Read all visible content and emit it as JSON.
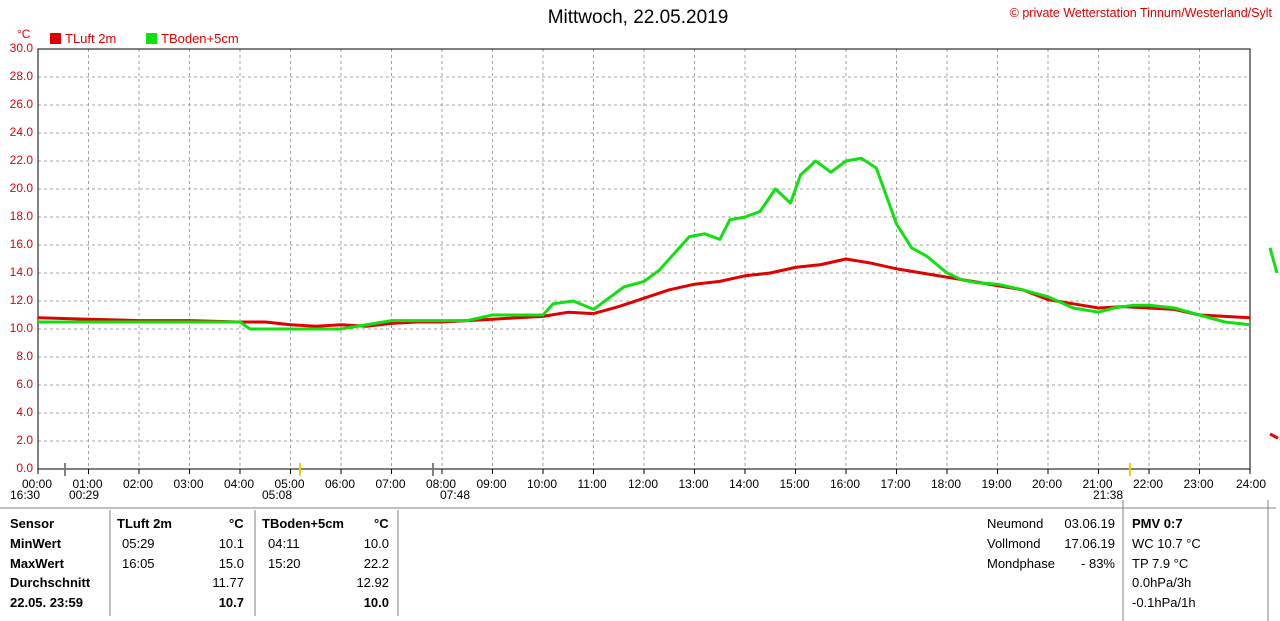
{
  "title": "Mittwoch, 22.05.2019",
  "copyright": "© private Wetterstation Tinnum/Westerland/Sylt",
  "legend": [
    {
      "label": "TLuft 2m",
      "color": "#e00000"
    },
    {
      "label": "TBoden+5cm",
      "color": "#10e010"
    }
  ],
  "unit": "°C",
  "chart_data": {
    "type": "line",
    "ylim": [
      0,
      30
    ],
    "xlim": [
      0,
      24
    ],
    "grid": true,
    "yticks": [
      "0.0",
      "2.0",
      "4.0",
      "6.0",
      "8.0",
      "10.0",
      "12.0",
      "14.0",
      "16.0",
      "18.0",
      "20.0",
      "22.0",
      "24.0",
      "26.0",
      "28.0",
      "30.0"
    ],
    "xticks": [
      "00:00",
      "01:00",
      "02:00",
      "03:00",
      "04:00",
      "05:00",
      "06:00",
      "07:00",
      "08:00",
      "09:00",
      "10:00",
      "11:00",
      "12:00",
      "13:00",
      "14:00",
      "15:00",
      "16:00",
      "17:00",
      "18:00",
      "19:00",
      "20:00",
      "21:00",
      "22:00",
      "23:00",
      "24:00"
    ],
    "series": [
      {
        "name": "TLuft 2m",
        "color": "#e00000",
        "x": [
          0,
          1,
          2,
          3,
          4,
          4.5,
          5,
          5.5,
          6,
          6.5,
          7,
          7.5,
          8,
          8.5,
          9,
          9.5,
          10,
          10.5,
          11,
          11.5,
          12,
          12.5,
          13,
          13.5,
          14,
          14.5,
          15,
          15.5,
          16,
          16.5,
          17,
          17.5,
          18,
          18.5,
          19,
          19.5,
          20,
          20.5,
          21,
          21.5,
          22,
          22.5,
          23,
          23.5,
          24
        ],
        "y": [
          10.8,
          10.7,
          10.6,
          10.6,
          10.5,
          10.5,
          10.3,
          10.2,
          10.3,
          10.2,
          10.4,
          10.5,
          10.5,
          10.6,
          10.7,
          10.8,
          10.9,
          11.2,
          11.1,
          11.6,
          12.2,
          12.8,
          13.2,
          13.4,
          13.8,
          14.0,
          14.4,
          14.6,
          15.0,
          14.7,
          14.3,
          14.0,
          13.7,
          13.4,
          13.1,
          12.8,
          12.1,
          11.8,
          11.5,
          11.6,
          11.5,
          11.4,
          11.0,
          10.9,
          10.8
        ]
      },
      {
        "name": "TBoden+5cm",
        "color": "#10e010",
        "x": [
          0,
          1,
          2,
          3,
          4,
          4.2,
          5,
          6,
          7,
          7.5,
          8,
          8.5,
          9,
          9.5,
          10,
          10.2,
          10.6,
          11,
          11.3,
          11.6,
          12,
          12.3,
          12.6,
          12.9,
          13.2,
          13.5,
          13.7,
          14,
          14.3,
          14.6,
          14.9,
          15.1,
          15.4,
          15.7,
          16,
          16.3,
          16.6,
          16.8,
          17,
          17.3,
          17.6,
          18,
          18.3,
          18.6,
          19,
          19.5,
          20,
          20.5,
          21,
          21.3,
          21.7,
          22,
          22.5,
          23,
          23.5,
          24
        ],
        "y": [
          10.5,
          10.5,
          10.5,
          10.5,
          10.5,
          10.0,
          10.0,
          10.0,
          10.6,
          10.6,
          10.6,
          10.6,
          11.0,
          11.0,
          11.0,
          11.8,
          12.0,
          11.4,
          12.2,
          13.0,
          13.4,
          14.2,
          15.4,
          16.6,
          16.8,
          16.4,
          17.8,
          18.0,
          18.4,
          20.0,
          19.0,
          21.0,
          22.0,
          21.2,
          22.0,
          22.2,
          21.5,
          19.5,
          17.5,
          15.8,
          15.2,
          14.0,
          13.5,
          13.3,
          13.2,
          12.8,
          12.3,
          11.5,
          11.2,
          11.5,
          11.7,
          11.7,
          11.5,
          11.0,
          10.5,
          10.3
        ]
      }
    ]
  },
  "markers": {
    "left_time": "16:30",
    "moonrise": "00:29",
    "sunrise": "05:08",
    "moonset": "07:48",
    "sunset": "21:38"
  },
  "table": {
    "headers": {
      "sensor": "Sensor",
      "col1": "TLuft 2m",
      "col1_unit": "°C",
      "col2": "TBoden+5cm",
      "col2_unit": "°C"
    },
    "rows": [
      {
        "label": "MinWert",
        "t1": "05:29",
        "v1": "10.1",
        "t2": "04:11",
        "v2": "10.0"
      },
      {
        "label": "MaxWert",
        "t1": "16:05",
        "v1": "15.0",
        "t2": "15:20",
        "v2": "22.2"
      },
      {
        "label": "Durchschnitt",
        "t1": "",
        "v1": "11.77",
        "t2": "",
        "v2": "12.92"
      },
      {
        "label": "22.05. 23:59",
        "t1": "",
        "v1": "10.7",
        "t2": "",
        "v2": "10.0"
      }
    ],
    "moon": [
      {
        "label": "Neumond",
        "value": "03.06.19"
      },
      {
        "label": "Vollmond",
        "value": "17.06.19"
      },
      {
        "label": "Mondphase",
        "value": "- 83%"
      }
    ],
    "pmv": [
      "PMV 0:7",
      "WC 10.7 °C",
      "TP 7.9 °C",
      "0.0hPa/3h",
      "-0.1hPa/1h"
    ]
  }
}
